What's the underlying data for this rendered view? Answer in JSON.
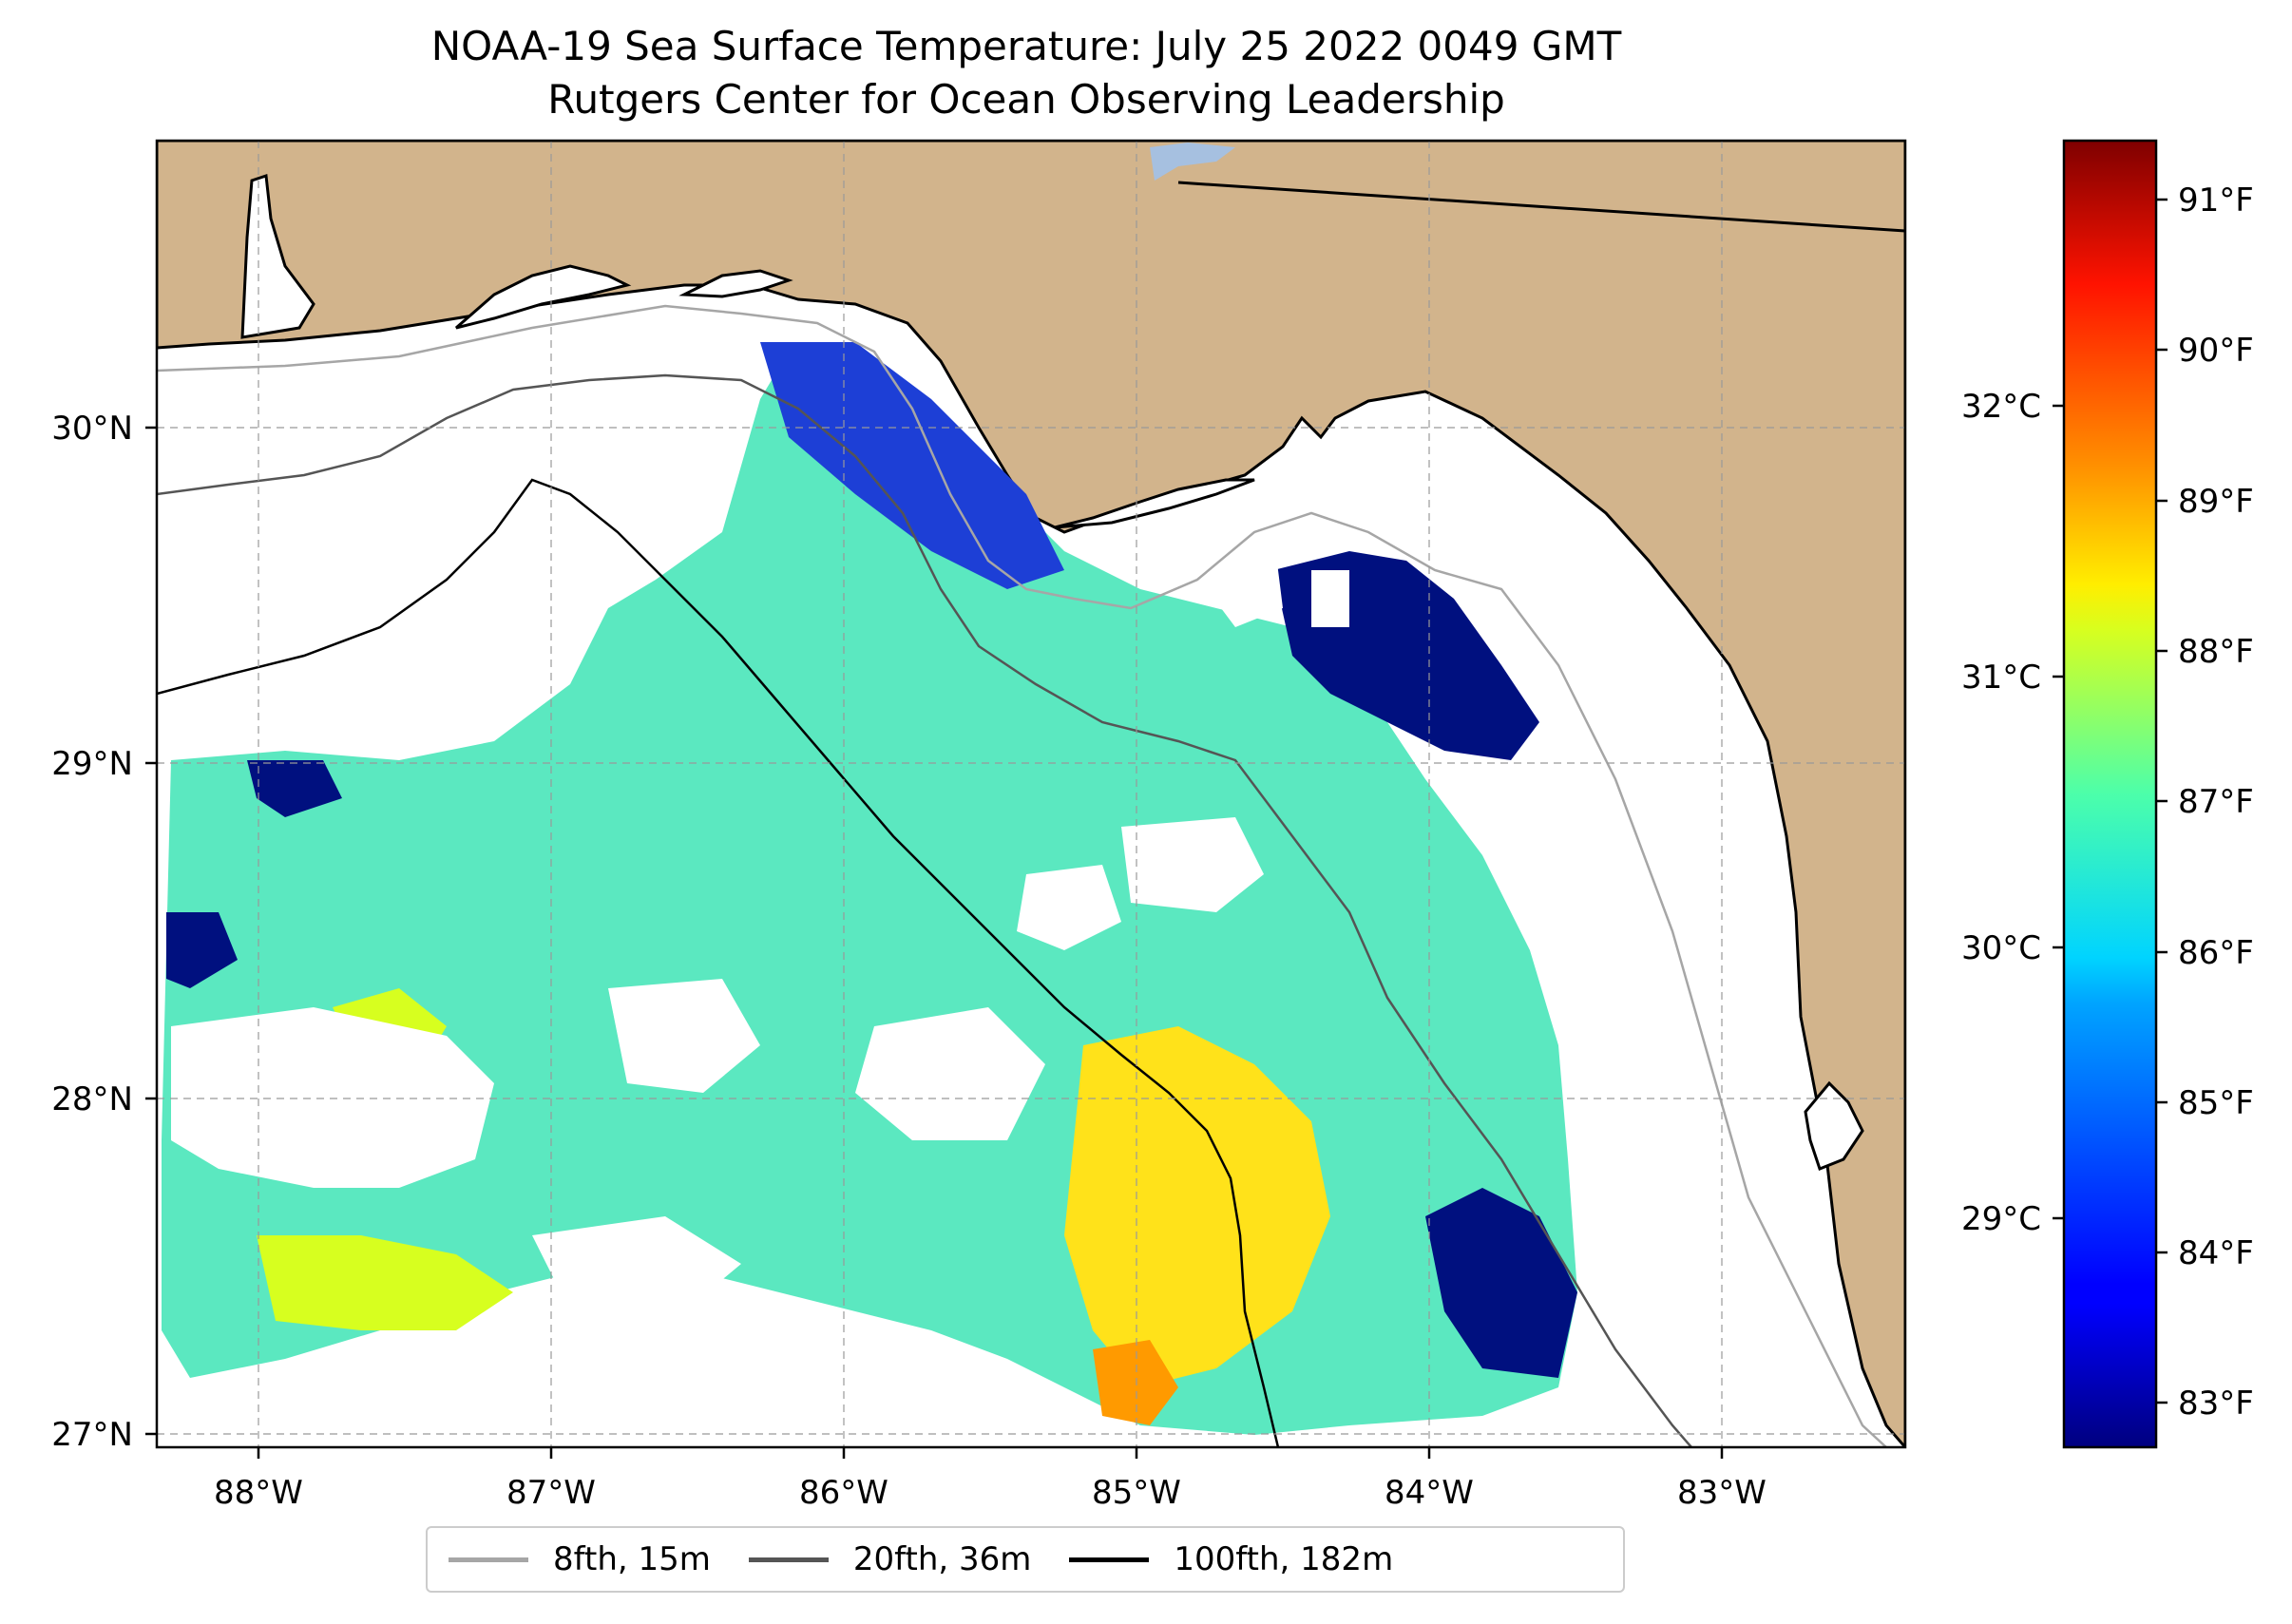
{
  "title": {
    "line1": "NOAA-19 Sea Surface Temperature: July 25 2022 0049 GMT",
    "line2": "Rutgers Center for Ocean Observing Leadership"
  },
  "map": {
    "lon_labels": [
      "88°W",
      "87°W",
      "86°W",
      "85°W",
      "84°W",
      "83°W"
    ],
    "lat_labels": [
      "30°N",
      "29°N",
      "28°N",
      "27°N"
    ],
    "land_color": "#d2b48c",
    "water_color": "#ffffff",
    "gridlines": true
  },
  "colorbar": {
    "colormap": "jet",
    "fahrenheit_ticks": [
      "91°F",
      "90°F",
      "89°F",
      "88°F",
      "87°F",
      "86°F",
      "85°F",
      "84°F",
      "83°F"
    ],
    "celsius_ticks": [
      "32°C",
      "31°C",
      "30°C",
      "29°C"
    ],
    "range_f": [
      82.7,
      91.4
    ]
  },
  "legend": {
    "items": [
      {
        "label": "8fth, 15m",
        "color": "#a6a6a6"
      },
      {
        "label": "20fth, 36m",
        "color": "#555555"
      },
      {
        "label": "100fth, 182m",
        "color": "#000000"
      }
    ]
  }
}
